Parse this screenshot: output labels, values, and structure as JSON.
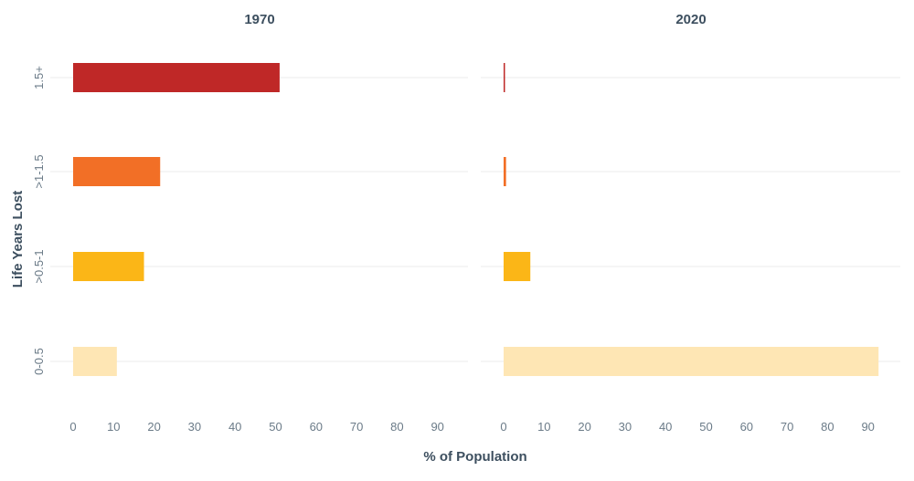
{
  "chart_data": {
    "type": "bar",
    "orientation": "horizontal",
    "xlabel": "% of Population",
    "ylabel": "Life Years Lost",
    "categories": [
      "1.5+",
      ">1-1.5",
      ">0.5-1",
      "0-0.5"
    ],
    "colors": [
      "#bf2827",
      "#f26f26",
      "#fbb617",
      "#fee6b4"
    ],
    "xlim": [
      0,
      95
    ],
    "xticks": [
      0,
      10,
      20,
      30,
      40,
      50,
      60,
      70,
      80,
      90
    ],
    "panels": [
      {
        "title": "1970",
        "values": [
          51,
          21.5,
          17.5,
          10.8
        ]
      },
      {
        "title": "2020",
        "values": [
          0.2,
          0.6,
          6.6,
          92.6
        ]
      }
    ]
  }
}
